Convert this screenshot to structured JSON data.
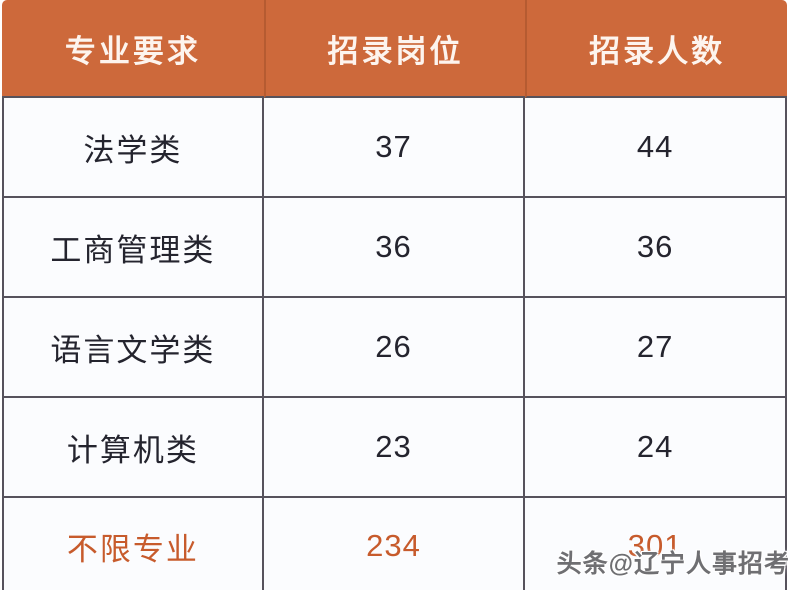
{
  "colors": {
    "header_background": "#cd693b",
    "header_text": "#fdf4ee",
    "body_background": "#fbfcfe",
    "body_text": "#24242e",
    "grid_border": "#56525c",
    "highlight_text": "#c75b2c",
    "page_background": "#ffffff"
  },
  "table": {
    "headers": [
      "专业要求",
      "招录岗位",
      "招录人数"
    ],
    "rows": [
      {
        "major": "法学类",
        "positions": "37",
        "headcount": "44"
      },
      {
        "major": "工商管理类",
        "positions": "36",
        "headcount": "36"
      },
      {
        "major": "语言文学类",
        "positions": "26",
        "headcount": "27"
      },
      {
        "major": "计算机类",
        "positions": "23",
        "headcount": "24"
      },
      {
        "major": "不限专业",
        "positions": "234",
        "headcount": "301"
      }
    ]
  },
  "watermark": {
    "text": "头条@辽宁人事招考"
  },
  "chart_data": {
    "type": "table",
    "title": "",
    "columns": [
      "专业要求",
      "招录岗位",
      "招录人数"
    ],
    "rows": [
      [
        "法学类",
        37,
        44
      ],
      [
        "工商管理类",
        36,
        36
      ],
      [
        "语言文学类",
        26,
        27
      ],
      [
        "计算机类",
        23,
        24
      ],
      [
        "不限专业",
        234,
        301
      ]
    ],
    "notes": "last row styled in orange highlight color"
  }
}
